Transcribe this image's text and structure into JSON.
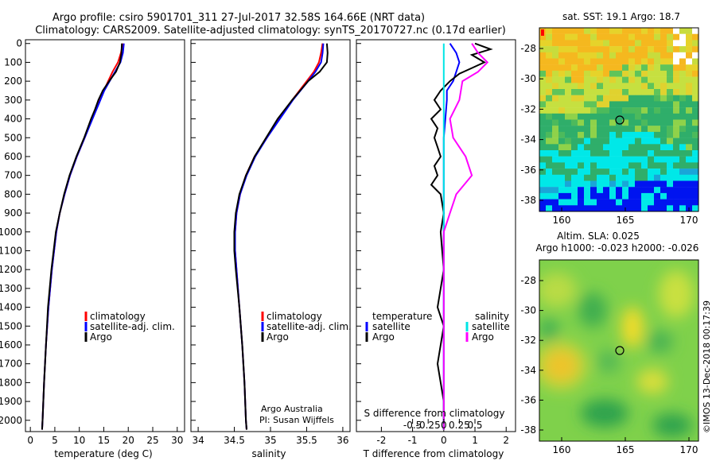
{
  "title_line1": "Argo profile: csiro 5901701_311 27-Jul-2017 32.58S 164.66E (NRT data)",
  "title_line2": "Climatology: CARS2009. Satellite-adjusted climatology: synTS_20170727.nc (0.17d earlier)",
  "credit": "©IMOS 13-Dec-2018 00:17:39",
  "colors": {
    "climatology": "#ff0000",
    "satellite": "#0000ff",
    "argo": "#000000",
    "sat_salinity": "#00e5e5",
    "argo_salinity": "#ff00ff"
  },
  "depth_ticks": [
    0,
    100,
    200,
    300,
    400,
    500,
    600,
    700,
    800,
    900,
    1000,
    1100,
    1200,
    1300,
    1400,
    1500,
    1600,
    1700,
    1800,
    1900,
    2000
  ],
  "panels": {
    "temperature": {
      "xlabel": "temperature (deg C)",
      "xticks": [
        0,
        5,
        10,
        15,
        20,
        25,
        30
      ],
      "legend": [
        "climatology",
        "satellite-adj. clim.",
        "Argo"
      ]
    },
    "salinity": {
      "xlabel": "salinity",
      "xticks": [
        "34",
        "34.5",
        "35",
        "35.5",
        "36"
      ],
      "legend": [
        "climatology",
        "satellite-adj. clim.",
        "Argo"
      ],
      "note1": "Argo Australia",
      "note2": "PI: Susan Wijffels"
    },
    "difference": {
      "xlabel": "T difference from climatology",
      "xticks": [
        "-2",
        "-1",
        "0",
        "1",
        "2"
      ],
      "top_label": "S difference from climatology",
      "top_ticks": [
        "-0.5",
        "-0.25",
        "0",
        "0.25",
        "0.5"
      ],
      "legend_left_title": "temperature",
      "legend_left": [
        "satellite",
        "Argo"
      ],
      "legend_right_title": "salinity",
      "legend_right": [
        "satellite",
        "Argo"
      ]
    }
  },
  "maps": {
    "sst": {
      "title": "sat. SST: 19.1 Argo: 18.7",
      "xticks": [
        "160",
        "165",
        "170"
      ],
      "yticks": [
        "-28",
        "-30",
        "-32",
        "-34",
        "-36",
        "-38"
      ]
    },
    "sla": {
      "title1": "Altim. SLA: 0.025",
      "title2": "Argo h1000: -0.023 h2000: -0.026",
      "xticks": [
        "160",
        "165",
        "170"
      ],
      "yticks": [
        "-28",
        "-30",
        "-32",
        "-34",
        "-36",
        "-38"
      ]
    }
  },
  "chart_data": [
    {
      "type": "line",
      "title": "",
      "xlabel": "temperature (deg C)",
      "ylabel": "",
      "xlim": [
        -1,
        31.5
      ],
      "ylim": [
        2060,
        -20
      ],
      "series": [
        {
          "name": "climatology",
          "depth": [
            0,
            50,
            100,
            150,
            200,
            250,
            300,
            400,
            500,
            600,
            700,
            800,
            900,
            1000,
            1200,
            1400,
            1600,
            1800,
            2000,
            2050
          ],
          "values": [
            18.9,
            18.5,
            17.9,
            16.8,
            15.9,
            15.0,
            14.2,
            12.6,
            11.1,
            9.5,
            8.1,
            7.0,
            6.0,
            5.3,
            4.4,
            3.7,
            3.2,
            2.8,
            2.5,
            2.4
          ]
        },
        {
          "name": "satellite-adj. clim.",
          "depth": [
            0,
            50,
            100,
            150,
            200,
            250,
            300,
            400,
            500,
            600,
            700,
            800,
            900,
            1000,
            1200,
            1400,
            1600,
            1800,
            2000,
            2050
          ],
          "values": [
            19.1,
            18.9,
            18.4,
            17.3,
            16.2,
            15.1,
            14.3,
            12.7,
            11.1,
            9.5,
            8.1,
            7.0,
            6.0,
            5.3,
            4.4,
            3.7,
            3.2,
            2.8,
            2.5,
            2.4
          ]
        },
        {
          "name": "Argo",
          "depth": [
            0,
            50,
            100,
            150,
            200,
            250,
            300,
            350,
            400,
            500,
            600,
            700,
            800,
            900,
            1000,
            1200,
            1400,
            1600,
            1800,
            2000,
            2050
          ],
          "values": [
            18.7,
            18.6,
            18.3,
            17.5,
            16.1,
            14.8,
            13.9,
            13.2,
            12.4,
            11.0,
            9.4,
            8.0,
            6.9,
            6.0,
            5.2,
            4.3,
            3.6,
            3.2,
            2.8,
            2.5,
            2.4
          ]
        }
      ]
    },
    {
      "type": "line",
      "title": "",
      "xlabel": "salinity",
      "ylabel": "",
      "xlim": [
        33.9,
        36.1
      ],
      "ylim": [
        2060,
        -20
      ],
      "series": [
        {
          "name": "climatology",
          "depth": [
            0,
            50,
            100,
            150,
            200,
            300,
            400,
            500,
            600,
            700,
            800,
            900,
            1000,
            1100,
            1200,
            1400,
            1600,
            1800,
            2000,
            2050
          ],
          "values": [
            35.72,
            35.7,
            35.67,
            35.6,
            35.5,
            35.3,
            35.12,
            34.95,
            34.78,
            34.66,
            34.58,
            34.53,
            34.51,
            34.51,
            34.53,
            34.57,
            34.61,
            34.64,
            34.66,
            34.67
          ]
        },
        {
          "name": "satellite-adj. clim.",
          "depth": [
            0,
            50,
            100,
            150,
            200,
            300,
            400,
            500,
            600,
            700,
            800,
            900,
            1000,
            1100,
            1200,
            1400,
            1600,
            1800,
            2000,
            2050
          ],
          "values": [
            35.73,
            35.72,
            35.7,
            35.62,
            35.52,
            35.31,
            35.13,
            34.95,
            34.79,
            34.67,
            34.58,
            34.53,
            34.51,
            34.51,
            34.53,
            34.57,
            34.61,
            34.64,
            34.66,
            34.67
          ]
        },
        {
          "name": "Argo",
          "depth": [
            0,
            50,
            100,
            150,
            200,
            300,
            400,
            500,
            600,
            700,
            800,
            900,
            1000,
            1100,
            1200,
            1400,
            1600,
            1800,
            2000,
            2050
          ],
          "values": [
            35.78,
            35.79,
            35.78,
            35.68,
            35.52,
            35.3,
            35.1,
            34.94,
            34.78,
            34.66,
            34.57,
            34.52,
            34.5,
            34.5,
            34.52,
            34.57,
            34.61,
            34.64,
            34.66,
            34.67
          ]
        }
      ]
    },
    {
      "type": "line",
      "title": "",
      "xlabel": "T difference from climatology",
      "ylabel": "",
      "xlim": [
        -2.8,
        2.3
      ],
      "ylim": [
        2060,
        -20
      ],
      "series": [
        {
          "name": "temperature satellite",
          "depth": [
            0,
            50,
            100,
            150,
            200,
            250,
            300,
            400,
            500,
            600,
            800,
            1000,
            1400,
            1800,
            2050
          ],
          "values": [
            0.2,
            0.4,
            0.5,
            0.4,
            0.3,
            0.1,
            0.1,
            0.05,
            0.0,
            0.0,
            0.0,
            0.0,
            0.0,
            0.0,
            0.0
          ]
        },
        {
          "name": "temperature Argo",
          "depth": [
            0,
            30,
            60,
            100,
            130,
            160,
            200,
            250,
            300,
            350,
            400,
            450,
            500,
            550,
            600,
            650,
            700,
            750,
            800,
            900,
            1000,
            1100,
            1200,
            1300,
            1400,
            1500,
            1600,
            1700,
            1800,
            1900,
            2000,
            2050
          ],
          "values": [
            1.0,
            1.5,
            0.9,
            1.3,
            0.9,
            0.5,
            0.2,
            -0.1,
            -0.3,
            -0.1,
            -0.4,
            -0.2,
            -0.3,
            -0.2,
            -0.1,
            -0.3,
            -0.2,
            -0.4,
            -0.1,
            0.0,
            -0.1,
            -0.05,
            0.0,
            -0.1,
            -0.2,
            0.0,
            -0.1,
            -0.2,
            -0.1,
            0.0,
            0.0,
            0.0
          ]
        },
        {
          "name": "salinity satellite",
          "depth": [
            0,
            50,
            100,
            200,
            300,
            500,
            800,
            1200,
            1600,
            2050
          ],
          "values": [
            0.0,
            0.0,
            0.0,
            0.0,
            0.0,
            0.0,
            0.0,
            0.0,
            0.0,
            0.0
          ]
        },
        {
          "name": "salinity Argo",
          "depth": [
            0,
            50,
            100,
            150,
            200,
            300,
            400,
            500,
            600,
            700,
            800,
            900,
            1000,
            1200,
            1400,
            1600,
            2050
          ],
          "values": [
            0.45,
            0.55,
            0.7,
            0.55,
            0.3,
            0.25,
            0.1,
            0.15,
            0.35,
            0.45,
            0.2,
            0.1,
            0.0,
            0.0,
            0.0,
            0.0,
            0.0
          ]
        }
      ]
    }
  ]
}
